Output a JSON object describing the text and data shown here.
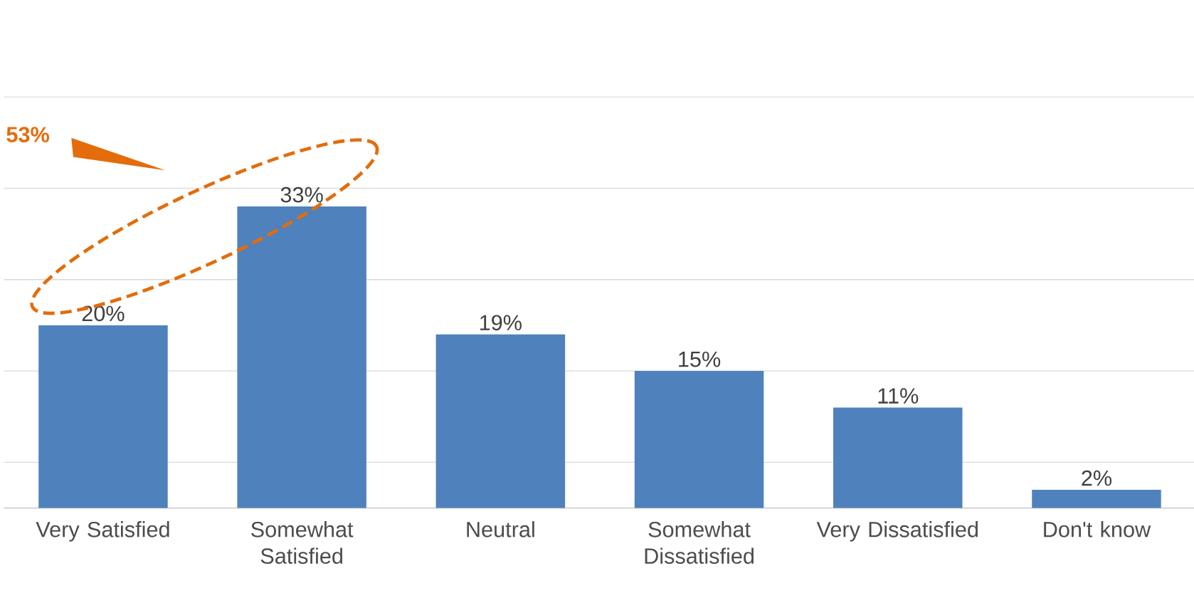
{
  "chart_data": {
    "type": "bar",
    "categories": [
      "Very Satisfied",
      "Somewhat Satisfied",
      "Neutral",
      "Somewhat Dissatisfied",
      "Very Dissatisfied",
      "Don't know"
    ],
    "values": [
      20,
      33,
      19,
      15,
      11,
      2
    ],
    "value_labels": [
      "20%",
      "33%",
      "19%",
      "15%",
      "11%",
      "2%"
    ],
    "color": "#4f81bd",
    "yticks": [
      {
        "value": 5,
        "label": null
      },
      {
        "value": 15,
        "label": null
      },
      {
        "value": 25,
        "label": null
      },
      {
        "value": 35,
        "label": null
      },
      {
        "value": 45,
        "label": null
      }
    ],
    "tick_labels": "x",
    "grid": "y",
    "annotations": [
      "53%"
    ]
  }
}
